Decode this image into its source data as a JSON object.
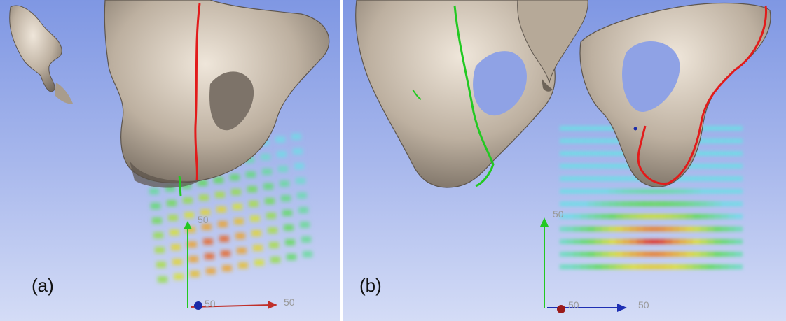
{
  "panels": [
    {
      "label": "(a)",
      "axes": {
        "x_tick": "50",
        "y_tick": "50",
        "origin_tick": "50"
      }
    },
    {
      "label": "(b)",
      "axes": {
        "x_tick": "50",
        "y_tick": "50",
        "origin_tick": "50"
      }
    }
  ],
  "colors": {
    "background_top": "#c9d4f4",
    "background_bottom": "#aab8ea",
    "bone": "#c8bcae",
    "bone_shadow": "#6b625a",
    "cut_line_red": "#e21b1b",
    "cut_line_green": "#22c922",
    "axis_x_a": "#c0302a",
    "axis_x_b": "#1e2fb3",
    "axis_y": "#22c922",
    "origin_a": "#1a2aa8",
    "origin_b": "#9b1a1a"
  }
}
